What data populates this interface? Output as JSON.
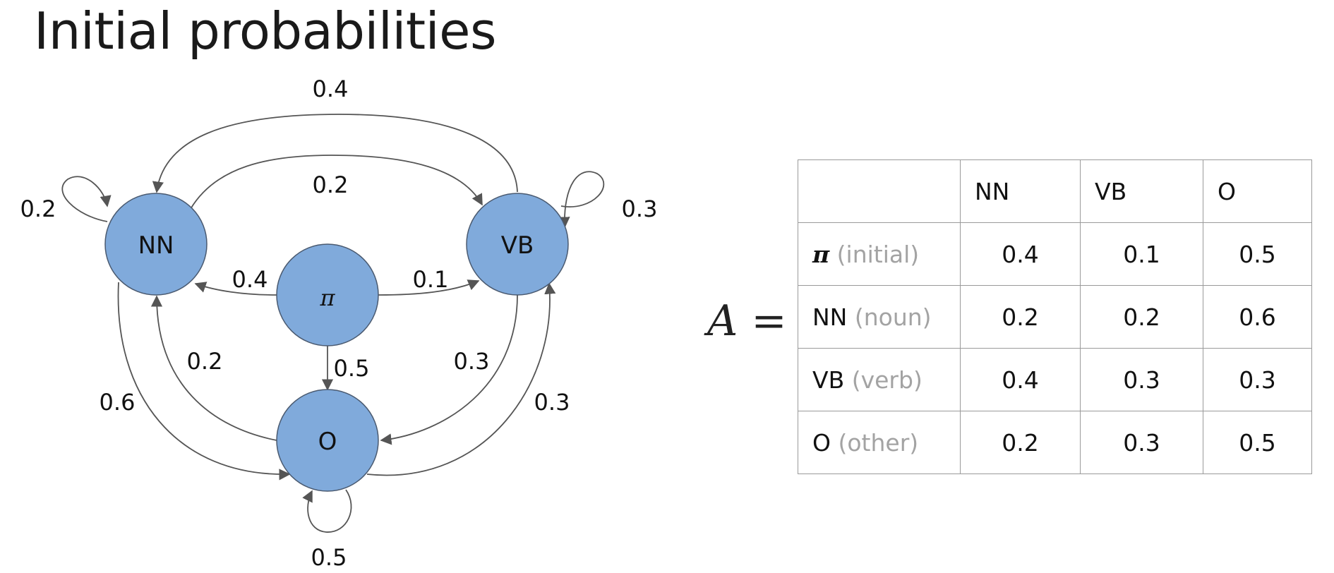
{
  "title": "Initial probabilities",
  "graph": {
    "nodes": {
      "NN": "NN",
      "VB": "VB",
      "pi": "π",
      "O": "O"
    },
    "edges": [
      {
        "from": "VB",
        "to": "NN",
        "prob": "0.4"
      },
      {
        "from": "NN",
        "to": "VB",
        "prob": "0.2"
      },
      {
        "from": "NN",
        "to": "NN",
        "prob": "0.2"
      },
      {
        "from": "VB",
        "to": "VB",
        "prob": "0.3"
      },
      {
        "from": "π",
        "to": "NN",
        "prob": "0.4"
      },
      {
        "from": "π",
        "to": "VB",
        "prob": "0.1"
      },
      {
        "from": "π",
        "to": "O",
        "prob": "0.5"
      },
      {
        "from": "O",
        "to": "NN",
        "prob": "0.2"
      },
      {
        "from": "VB",
        "to": "O",
        "prob": "0.3"
      },
      {
        "from": "NN",
        "to": "O",
        "prob": "0.6"
      },
      {
        "from": "O",
        "to": "VB",
        "prob": "0.3"
      },
      {
        "from": "O",
        "to": "O",
        "prob": "0.5"
      }
    ]
  },
  "matrix": {
    "symbol": "A",
    "equals": "=",
    "columns": [
      "NN",
      "VB",
      "O"
    ],
    "rows": [
      {
        "name": "π",
        "desc": "(initial)",
        "values": [
          "0.4",
          "0.1",
          "0.5"
        ]
      },
      {
        "name": "NN",
        "desc": "(noun)",
        "values": [
          "0.2",
          "0.2",
          "0.6"
        ]
      },
      {
        "name": "VB",
        "desc": "(verb)",
        "values": [
          "0.4",
          "0.3",
          "0.3"
        ]
      },
      {
        "name": "O",
        "desc": "(other)",
        "values": [
          "0.2",
          "0.3",
          "0.5"
        ]
      }
    ]
  }
}
